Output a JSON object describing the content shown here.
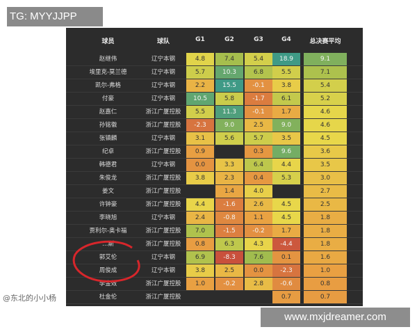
{
  "overlay_label": "TG: MYYJJPP",
  "site_label": "www.mxjdreamer.com",
  "watermark": "@东北的小小杨",
  "headers": [
    "球员",
    "球队",
    "G1",
    "G2",
    "G3",
    "G4",
    "总决赛平均"
  ],
  "rows": [
    {
      "name": "赵继伟",
      "team": "辽宁本钢",
      "g": [
        "4.8",
        "7.4",
        "5.4",
        "18.9"
      ],
      "avg": "9.1"
    },
    {
      "name": "埃里克-莫兰德",
      "team": "辽宁本钢",
      "g": [
        "5.7",
        "10.3",
        "6.8",
        "5.5"
      ],
      "avg": "7.1"
    },
    {
      "name": "凯尔-弗格",
      "team": "辽宁本钢",
      "g": [
        "2.2",
        "15.5",
        "-0.1",
        "3.8"
      ],
      "avg": "5.4"
    },
    {
      "name": "付豪",
      "team": "辽宁本钢",
      "g": [
        "10.5",
        "5.8",
        "-1.7",
        "6.1"
      ],
      "avg": "5.2"
    },
    {
      "name": "赵嘉仁",
      "team": "浙江广厦控股",
      "g": [
        "5.5",
        "11.3",
        "-0.1",
        "1.7"
      ],
      "avg": "4.6"
    },
    {
      "name": "孙铭徽",
      "team": "浙江广厦控股",
      "g": [
        "-2.3",
        "9.0",
        "2.5",
        "9.0"
      ],
      "avg": "4.6"
    },
    {
      "name": "张镇麟",
      "team": "辽宁本钢",
      "g": [
        "3.1",
        "5.6",
        "5.7",
        "3.5"
      ],
      "avg": "4.5"
    },
    {
      "name": "纪卓",
      "team": "浙江广厦控股",
      "g": [
        "0.9",
        "",
        "0.3",
        "9.6"
      ],
      "avg": "3.6"
    },
    {
      "name": "韩德君",
      "team": "辽宁本钢",
      "g": [
        "0.0",
        "3.3",
        "6.4",
        "4.4"
      ],
      "avg": "3.5"
    },
    {
      "name": "朱俊龙",
      "team": "浙江广厦控股",
      "g": [
        "3.8",
        "2.3",
        "0.4",
        "5.3"
      ],
      "avg": "3.0"
    },
    {
      "name": "姜文",
      "team": "浙江广厦控股",
      "g": [
        "",
        "1.4",
        "4.0",
        ""
      ],
      "avg": "2.7"
    },
    {
      "name": "许钟豪",
      "team": "浙江广厦控股",
      "g": [
        "4.4",
        "-1.6",
        "2.6",
        "4.5"
      ],
      "avg": "2.5"
    },
    {
      "name": "李晓旭",
      "team": "辽宁本钢",
      "g": [
        "2.4",
        "-0.8",
        "1.1",
        "4.5"
      ],
      "avg": "1.8"
    },
    {
      "name": "贾利尔-奥卡福",
      "team": "浙江广厦控股",
      "g": [
        "7.0",
        "-1.5",
        "-0.2",
        "1.7"
      ],
      "avg": "1.8"
    },
    {
      "name": "…斯",
      "team": "浙江广厦控股",
      "g": [
        "0.8",
        "6.3",
        "4.3",
        "-4.4"
      ],
      "avg": "1.8"
    },
    {
      "name": "郭艾伦",
      "team": "辽宁本钢",
      "g": [
        "6.9",
        "-8.3",
        "7.6",
        "0.1"
      ],
      "avg": "1.6"
    },
    {
      "name": "周俊成",
      "team": "辽宁本钢",
      "g": [
        "3.8",
        "2.5",
        "0.0",
        "-2.3"
      ],
      "avg": "1.0"
    },
    {
      "name": "李金效",
      "team": "浙江广厦控股",
      "g": [
        "1.0",
        "-0.2",
        "2.8",
        "-0.6"
      ],
      "avg": "0.8"
    },
    {
      "name": "杜金伦",
      "team": "浙江广厦控股",
      "g": [
        "",
        "",
        "",
        "0.7"
      ],
      "avg": "0.7"
    }
  ],
  "colors": {
    "low": "#c9503c",
    "mid_low": "#e9a042",
    "mid": "#e8d74a",
    "mid_high": "#98b94e",
    "high": "#3f9a86",
    "annotation": "#d7262b"
  }
}
